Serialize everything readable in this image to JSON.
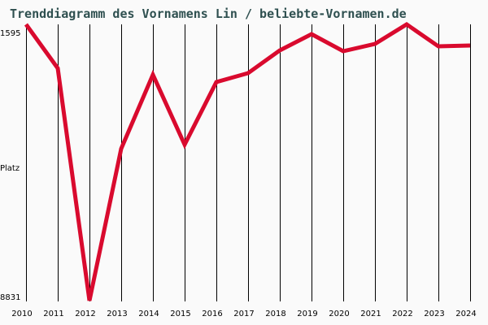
{
  "title": "Trenddiagramm des Vornamens Lin / beliebte-Vornamen.de",
  "colors": {
    "background": "#fafafa",
    "line": "#d90a2e",
    "grid": "#000000",
    "title": "#2f5050"
  },
  "chart_data": {
    "type": "line",
    "title": "Trenddiagramm des Vornamens Lin / beliebte-Vornamen.de",
    "xlabel": "",
    "ylabel": "Platz",
    "y_inverted": true,
    "ylim": [
      1595,
      8831
    ],
    "y_ticks": [
      "1595",
      "Platz",
      "8831"
    ],
    "grid": "vertical lines at each year",
    "categories": [
      "2010",
      "2011",
      "2012",
      "2013",
      "2014",
      "2015",
      "2016",
      "2017",
      "2018",
      "2019",
      "2020",
      "2021",
      "2022",
      "2023",
      "2024"
    ],
    "series": [
      {
        "name": "Lin",
        "values": [
          1595,
          2744,
          8831,
          4851,
          2914,
          4745,
          3106,
          2872,
          2276,
          1850,
          2297,
          2106,
          1595,
          2170,
          2148
        ]
      }
    ]
  },
  "axis": {
    "y_top": "1595",
    "y_mid": "Platz",
    "y_bottom": "8831",
    "x_labels": [
      "2010",
      "2011",
      "2012",
      "2013",
      "2014",
      "2015",
      "2016",
      "2017",
      "2018",
      "2019",
      "2020",
      "2021",
      "2022",
      "2023",
      "2024"
    ]
  }
}
